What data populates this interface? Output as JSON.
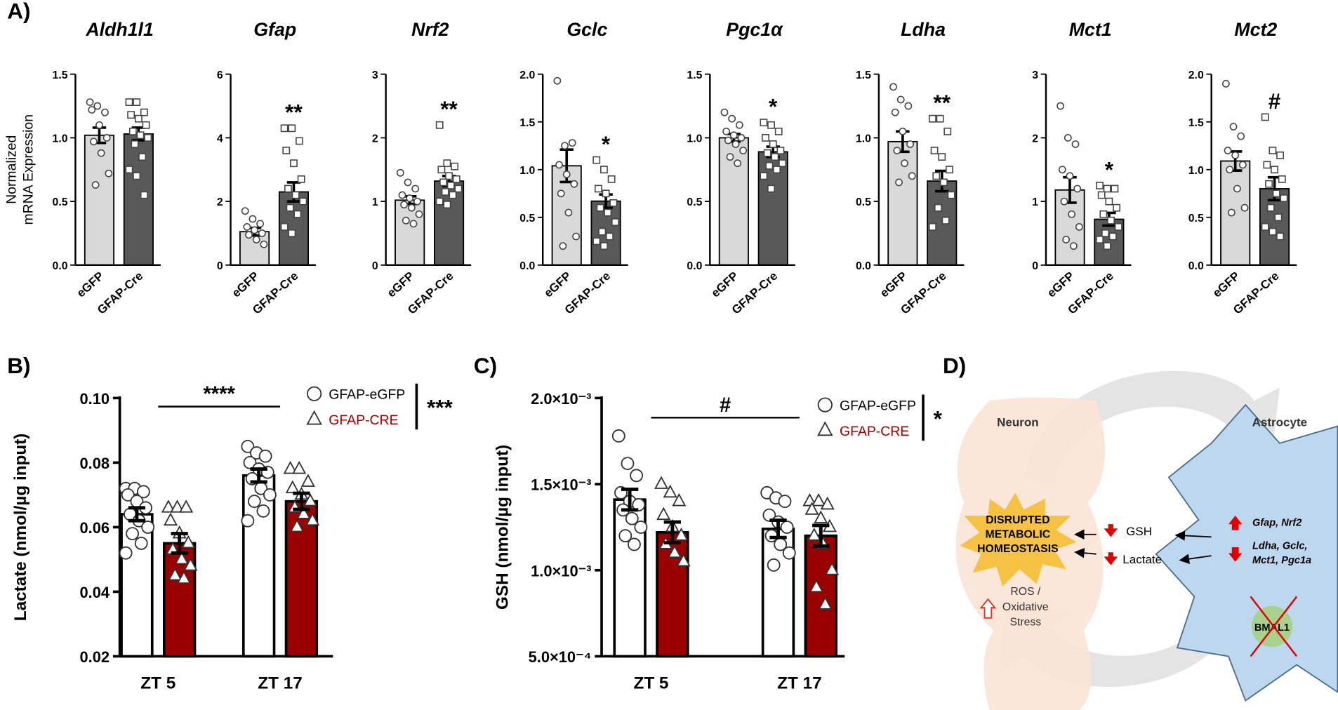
{
  "panel_labels": [
    "A)",
    "B)",
    "C)",
    "D)"
  ],
  "chart_data": [
    {
      "type": "bar",
      "title": "Aldh1l1",
      "ylabel": [
        "Normalized",
        "mRNA Expression"
      ],
      "categories": [
        "eGFP",
        "GFAP-Cre"
      ],
      "colors": [
        "#d9d9d9",
        "#595959"
      ],
      "markers": [
        "circle",
        "square"
      ],
      "values": [
        1.02,
        1.03
      ],
      "errors": [
        0.06,
        0.05
      ],
      "points": [
        [
          1.28,
          1.25,
          1.2,
          1.22,
          1.1,
          1.0,
          0.97,
          0.88,
          0.72,
          0.63
        ],
        [
          1.28,
          1.28,
          1.2,
          1.18,
          1.15,
          1.1,
          1.05,
          1.02,
          1.0,
          0.95,
          0.85,
          0.75,
          0.7,
          0.55
        ]
      ],
      "ylim": [
        0,
        1.5
      ],
      "yticks": [
        {
          "value": 0,
          "label": "0.0"
        },
        0.5,
        {
          "value": 1,
          "label": "1.0"
        },
        1.5
      ]
    },
    {
      "type": "bar",
      "title": "Gfap",
      "categories": [
        "eGFP",
        "GFAP-Cre"
      ],
      "colors": [
        "#d9d9d9",
        "#595959"
      ],
      "markers": [
        "circle",
        "square"
      ],
      "values": [
        1.05,
        2.3
      ],
      "errors": [
        0.12,
        0.3
      ],
      "points": [
        [
          1.7,
          1.45,
          1.3,
          1.2,
          1.1,
          1.0,
          0.95,
          0.8,
          0.65
        ],
        [
          4.3,
          4.3,
          3.9,
          3.6,
          3.2,
          2.7,
          2.4,
          2.2,
          2.0,
          1.8,
          1.6,
          1.2,
          1.0
        ]
      ],
      "annotation": "**",
      "ylim": [
        0,
        6
      ],
      "yticks": [
        0,
        2,
        4,
        6
      ]
    },
    {
      "type": "bar",
      "title": "Nrf2",
      "categories": [
        "eGFP",
        "GFAP-Cre"
      ],
      "colors": [
        "#d9d9d9",
        "#595959"
      ],
      "markers": [
        "circle",
        "square"
      ],
      "values": [
        1.02,
        1.32
      ],
      "errors": [
        0.06,
        0.08
      ],
      "points": [
        [
          1.45,
          1.3,
          1.2,
          1.1,
          1.05,
          1.0,
          0.95,
          0.9,
          0.8,
          0.7,
          0.65
        ],
        [
          2.2,
          1.6,
          1.55,
          1.5,
          1.4,
          1.35,
          1.3,
          1.25,
          1.2,
          1.15,
          1.1,
          1.0,
          0.95
        ]
      ],
      "annotation": "**",
      "ylim": [
        0,
        3
      ],
      "yticks": [
        0,
        1,
        2,
        3
      ]
    },
    {
      "type": "bar",
      "title": "Gclc",
      "categories": [
        "eGFP",
        "GFAP-Cre"
      ],
      "colors": [
        "#d9d9d9",
        "#595959"
      ],
      "markers": [
        "circle",
        "square"
      ],
      "values": [
        1.04,
        0.67
      ],
      "errors": [
        0.17,
        0.07
      ],
      "points": [
        [
          1.93,
          1.25,
          1.28,
          1.05,
          0.95,
          0.85,
          0.75,
          0.55,
          0.3,
          0.2
        ],
        [
          1.1,
          1.0,
          0.9,
          0.8,
          0.75,
          0.65,
          0.6,
          0.55,
          0.45,
          0.35,
          0.3,
          0.25,
          0.2
        ]
      ],
      "annotation": "*",
      "ylim": [
        0,
        2
      ],
      "yticks": [
        {
          "value": 0,
          "label": "0.0"
        },
        0.5,
        {
          "value": 1,
          "label": "1.0"
        },
        1.5,
        {
          "value": 2,
          "label": "2.0"
        }
      ]
    },
    {
      "type": "bar",
      "title": "Pgc1α",
      "categories": [
        "eGFP",
        "GFAP-Cre"
      ],
      "colors": [
        "#d9d9d9",
        "#595959"
      ],
      "markers": [
        "circle",
        "square"
      ],
      "values": [
        1.0,
        0.89
      ],
      "errors": [
        0.03,
        0.04
      ],
      "points": [
        [
          1.2,
          1.15,
          1.1,
          1.05,
          1.02,
          1.0,
          0.98,
          0.95,
          0.9,
          0.85,
          0.8
        ],
        [
          1.12,
          1.1,
          1.05,
          1.0,
          0.95,
          0.9,
          0.88,
          0.85,
          0.8,
          0.78,
          0.75,
          0.7,
          0.6
        ]
      ],
      "annotation": "*",
      "ylim": [
        0,
        1.5
      ],
      "yticks": [
        {
          "value": 0,
          "label": "0.0"
        },
        0.5,
        {
          "value": 1,
          "label": "1.0"
        },
        1.5
      ]
    },
    {
      "type": "bar",
      "title": "Ldha",
      "categories": [
        "eGFP",
        "GFAP-Cre"
      ],
      "colors": [
        "#d9d9d9",
        "#595959"
      ],
      "markers": [
        "circle",
        "square"
      ],
      "values": [
        0.97,
        0.66
      ],
      "errors": [
        0.08,
        0.08
      ],
      "points": [
        [
          1.4,
          1.3,
          1.25,
          1.2,
          1.05,
          0.95,
          0.9,
          0.8,
          0.7,
          0.65
        ],
        [
          1.15,
          1.15,
          1.05,
          0.9,
          0.85,
          0.75,
          0.7,
          0.65,
          0.55,
          0.45,
          0.35,
          0.3
        ]
      ],
      "annotation": "**",
      "ylim": [
        0,
        1.5
      ],
      "yticks": [
        {
          "value": 0,
          "label": "0.0"
        },
        0.5,
        {
          "value": 1,
          "label": "1.0"
        },
        1.5
      ]
    },
    {
      "type": "bar",
      "title": "Mct1",
      "categories": [
        "eGFP",
        "GFAP-Cre"
      ],
      "colors": [
        "#d9d9d9",
        "#595959"
      ],
      "markers": [
        "circle",
        "square"
      ],
      "values": [
        1.18,
        0.72
      ],
      "errors": [
        0.2,
        0.1
      ],
      "points": [
        [
          2.5,
          2.0,
          1.9,
          1.5,
          1.4,
          1.2,
          1.0,
          0.8,
          0.6,
          0.4,
          0.3
        ],
        [
          1.25,
          1.2,
          1.2,
          1.1,
          1.0,
          0.9,
          0.8,
          0.7,
          0.6,
          0.5,
          0.45,
          0.4,
          0.3
        ]
      ],
      "annotation": "*",
      "ylim": [
        0,
        3
      ],
      "yticks": [
        0,
        1,
        2,
        3
      ]
    },
    {
      "type": "bar",
      "title": "Mct2",
      "categories": [
        "eGFP",
        "GFAP-Cre"
      ],
      "colors": [
        "#d9d9d9",
        "#595959"
      ],
      "markers": [
        "circle",
        "square"
      ],
      "values": [
        1.09,
        0.8
      ],
      "errors": [
        0.1,
        0.12
      ],
      "points": [
        [
          1.9,
          1.45,
          1.35,
          1.2,
          1.15,
          1.05,
          1.0,
          0.8,
          0.6,
          0.55
        ],
        [
          1.55,
          1.2,
          1.15,
          1.05,
          1.0,
          0.9,
          0.85,
          0.75,
          0.7,
          0.6,
          0.5,
          0.4,
          0.35,
          0.3
        ]
      ],
      "annotation": "#",
      "ylim": [
        0,
        2
      ],
      "yticks": [
        {
          "value": 0,
          "label": "0.0"
        },
        0.5,
        {
          "value": 1,
          "label": "1.0"
        },
        1.5,
        {
          "value": 2,
          "label": "2.0"
        }
      ]
    },
    {
      "type": "grouped_bar",
      "ylabel": "Lactate (nmol/µg input)",
      "categories": [
        "ZT 5",
        "ZT 17"
      ],
      "series": [
        {
          "name": "GFAP-eGFP",
          "color": "#ffffff",
          "label_color": "#000000",
          "marker": "circle",
          "values": [
            0.064,
            0.076
          ],
          "errors": [
            0.002,
            0.002
          ],
          "points": [
            [
              0.072,
              0.072,
              0.071,
              0.07,
              0.068,
              0.066,
              0.064,
              0.062,
              0.06,
              0.058,
              0.055,
              0.052
            ],
            [
              0.085,
              0.083,
              0.082,
              0.08,
              0.078,
              0.077,
              0.075,
              0.072,
              0.07,
              0.068,
              0.065,
              0.062
            ]
          ]
        },
        {
          "name": "GFAP-CRE",
          "color": "#9b0000",
          "label_color": "#a00000",
          "marker": "triangle",
          "values": [
            0.055,
            0.068
          ],
          "errors": [
            0.003,
            0.0025
          ],
          "points": [
            [
              0.066,
              0.066,
              0.066,
              0.062,
              0.058,
              0.055,
              0.053,
              0.05,
              0.048,
              0.045,
              0.044
            ],
            [
              0.078,
              0.078,
              0.074,
              0.072,
              0.07,
              0.068,
              0.066,
              0.064,
              0.062,
              0.06
            ]
          ]
        }
      ],
      "bracket_label": "****",
      "legend_label": "***",
      "ylim": [
        0.02,
        0.1
      ],
      "yticks": [
        0.02,
        0.04,
        0.06,
        0.08,
        {
          "value": 0.1,
          "label": "0.10"
        }
      ]
    },
    {
      "type": "grouped_bar",
      "ylabel": "GSH (nmol/µg input)",
      "categories": [
        "ZT 5",
        "ZT 17"
      ],
      "series": [
        {
          "name": "GFAP-eGFP",
          "color": "#ffffff",
          "label_color": "#000000",
          "marker": "circle",
          "values": [
            0.00141,
            0.00124
          ],
          "errors": [
            6e-05,
            5e-05
          ],
          "points": [
            [
              0.00178,
              0.00162,
              0.00155,
              0.00145,
              0.0014,
              0.00138,
              0.00135,
              0.0013,
              0.00125,
              0.0012,
              0.00115
            ],
            [
              0.00145,
              0.00142,
              0.0014,
              0.00132,
              0.00128,
              0.00125,
              0.0012,
              0.00115,
              0.0011,
              0.00103
            ]
          ]
        },
        {
          "name": "GFAP-CRE",
          "color": "#9b0000",
          "label_color": "#a00000",
          "marker": "triangle",
          "values": [
            0.00122,
            0.0012
          ],
          "errors": [
            6e-05,
            6e-05
          ],
          "points": [
            [
              0.0015,
              0.00145,
              0.0014,
              0.00132,
              0.00125,
              0.0012,
              0.00115,
              0.0011,
              0.00105
            ],
            [
              0.0014,
              0.0014,
              0.00138,
              0.00135,
              0.0013,
              0.00125,
              0.0012,
              0.00115,
              0.001,
              0.0009,
              0.0008
            ]
          ]
        }
      ],
      "bracket_label": "#",
      "legend_label": "*",
      "ylim": [
        0.0005,
        0.002
      ],
      "yticks": [
        {
          "value": 0.0005,
          "label": "5.0×10⁻⁴"
        },
        {
          "value": 0.001,
          "label": "1.0×10⁻³"
        },
        {
          "value": 0.0015,
          "label": "1.5×10⁻³"
        },
        {
          "value": 0.002,
          "label": "2.0×10⁻³"
        }
      ]
    }
  ],
  "diagram": {
    "neuron": "Neuron",
    "astrocyte": "Astrocyte",
    "burst": [
      "DISRUPTED",
      "METABOLIC",
      "HOMEOSTASIS"
    ],
    "gsh": "GSH",
    "lactate": "Lactate",
    "ros": [
      "ROS /",
      "Oxidative",
      "Stress"
    ],
    "up_genes": "Gfap, Nrf2",
    "down_genes": [
      "Ldha, Gclc,",
      "Mct1, Pgc1a"
    ],
    "bmal1": "BMAL1"
  }
}
